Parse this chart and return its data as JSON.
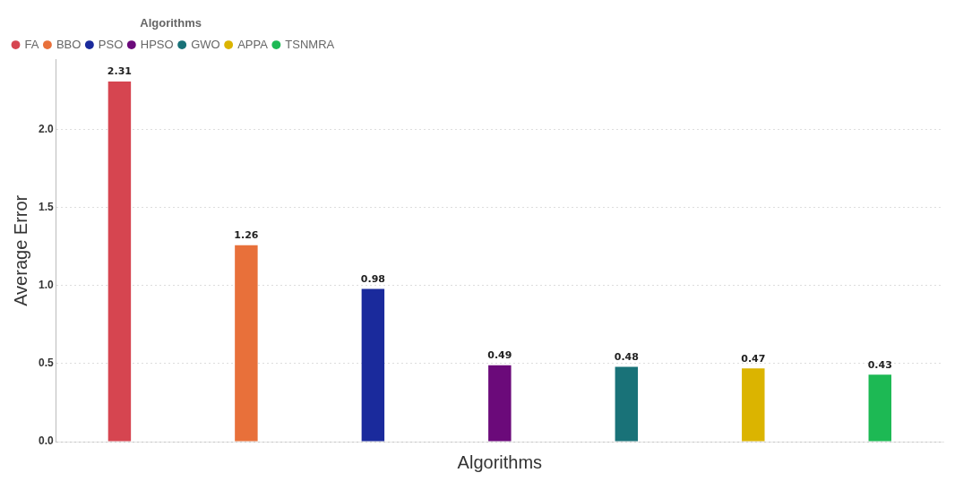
{
  "chart_data": {
    "type": "bar",
    "xlabel": "Algorithms",
    "ylabel": "Average Error",
    "legend_title": "Algorithms",
    "legend": "top left",
    "grid": "y",
    "data_labels": true,
    "categories": [
      null,
      null,
      null,
      null,
      null,
      null,
      null
    ],
    "ylim": [
      0,
      2.45
    ],
    "yticks": [
      {
        "value": 0,
        "label": "0.0"
      },
      {
        "value": 0.5,
        "label": "0.5"
      },
      {
        "value": 1,
        "label": "1.0"
      },
      {
        "value": 1.5,
        "label": "1.5"
      },
      {
        "value": 2,
        "label": "2.0"
      }
    ],
    "series": [
      {
        "name": "FA",
        "color": "#d64550",
        "values": [
          2.31,
          null,
          null,
          null,
          null,
          null,
          null
        ]
      },
      {
        "name": "BBO",
        "color": "#e8703a",
        "values": [
          null,
          1.26,
          null,
          null,
          null,
          null,
          null
        ]
      },
      {
        "name": "PSO",
        "color": "#1a2a9c",
        "values": [
          null,
          null,
          0.98,
          null,
          null,
          null,
          null
        ]
      },
      {
        "name": "HPSO",
        "color": "#6b0a7a",
        "values": [
          null,
          null,
          null,
          0.49,
          null,
          null,
          null
        ]
      },
      {
        "name": "GWO",
        "color": "#197278",
        "values": [
          null,
          null,
          null,
          null,
          0.48,
          null,
          null
        ]
      },
      {
        "name": "APPA",
        "color": "#dbb400",
        "values": [
          null,
          null,
          null,
          null,
          null,
          0.47,
          null
        ]
      },
      {
        "name": "TSNMRA",
        "color": "#1db954",
        "values": [
          null,
          null,
          null,
          null,
          null,
          null,
          0.43
        ]
      }
    ]
  }
}
